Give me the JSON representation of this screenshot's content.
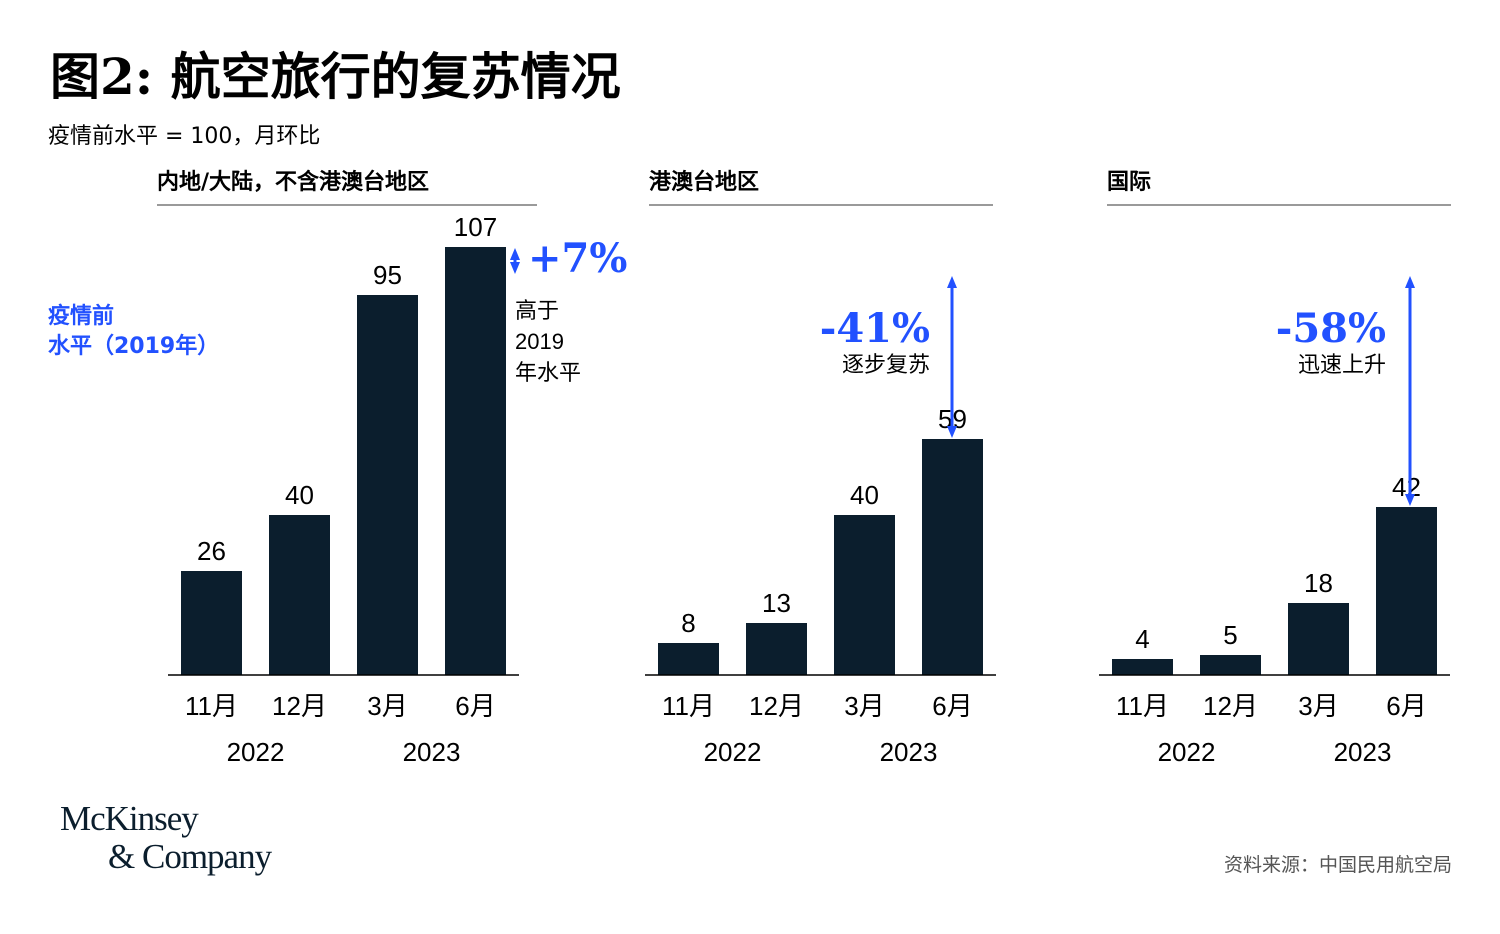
{
  "title": "图2: 航空旅行的复苏情况",
  "subtitle": "疫情前水平 = 100，月环比",
  "side_note": [
    "疫情前",
    "水平（2019年）"
  ],
  "source": "资料来源：中国民用航空局",
  "logo": [
    "McKinsey",
    "& Company"
  ],
  "colors": {
    "bar": "#0b1e2d",
    "accent": "#2251ff",
    "rule": "#9a9a9a",
    "text": "#000000"
  },
  "chart_data": [
    {
      "type": "bar",
      "title": "内地/大陆，不含港澳台地区",
      "categories": [
        "11月",
        "12月",
        "3月",
        "6月"
      ],
      "years": [
        {
          "label": "2022",
          "covers": [
            0,
            1
          ]
        },
        {
          "label": "2023",
          "covers": [
            2,
            3
          ]
        }
      ],
      "values": [
        26,
        40,
        95,
        107
      ],
      "ylim": [
        0,
        107
      ],
      "annotation": {
        "value": "+7%",
        "text": [
          "高于",
          "2019",
          "年水平"
        ],
        "from": 100,
        "to": 107
      }
    },
    {
      "type": "bar",
      "title": "港澳台地区",
      "categories": [
        "11月",
        "12月",
        "3月",
        "6月"
      ],
      "years": [
        {
          "label": "2022",
          "covers": [
            0,
            1
          ]
        },
        {
          "label": "2023",
          "covers": [
            2,
            3
          ]
        }
      ],
      "values": [
        8,
        13,
        40,
        59
      ],
      "ylim": [
        0,
        107
      ],
      "annotation": {
        "value": "-41%",
        "text": [
          "逐步复苏"
        ],
        "from": 100,
        "to": 59
      }
    },
    {
      "type": "bar",
      "title": "国际",
      "categories": [
        "11月",
        "12月",
        "3月",
        "6月"
      ],
      "years": [
        {
          "label": "2022",
          "covers": [
            0,
            1
          ]
        },
        {
          "label": "2023",
          "covers": [
            2,
            3
          ]
        }
      ],
      "values": [
        4,
        5,
        18,
        42
      ],
      "ylim": [
        0,
        107
      ],
      "annotation": {
        "value": "-58%",
        "text": [
          "迅速上升"
        ],
        "from": 100,
        "to": 42
      }
    }
  ]
}
